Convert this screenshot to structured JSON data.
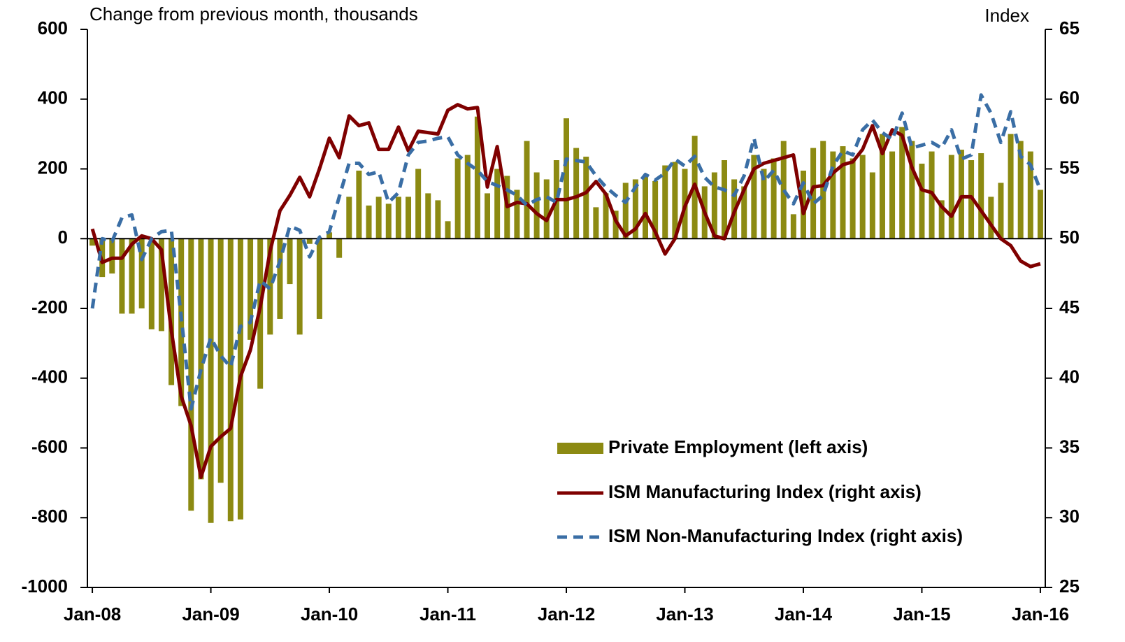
{
  "chart_data": {
    "type": "bar-line",
    "ylabel": "Change from previous month, thousands",
    "y2label": "Index",
    "categories": [
      "Jan-08",
      null,
      null,
      null,
      null,
      null,
      null,
      null,
      null,
      null,
      null,
      null,
      "Jan-09",
      null,
      null,
      null,
      null,
      null,
      null,
      null,
      null,
      null,
      null,
      null,
      "Jan-10",
      null,
      null,
      null,
      null,
      null,
      null,
      null,
      null,
      null,
      null,
      null,
      "Jan-11",
      null,
      null,
      null,
      null,
      null,
      null,
      null,
      null,
      null,
      null,
      null,
      "Jan-12",
      null,
      null,
      null,
      null,
      null,
      null,
      null,
      null,
      null,
      null,
      null,
      "Jan-13",
      null,
      null,
      null,
      null,
      null,
      null,
      null,
      null,
      null,
      null,
      null,
      "Jan-14",
      null,
      null,
      null,
      null,
      null,
      null,
      null,
      null,
      null,
      null,
      null,
      "Jan-15",
      null,
      null,
      null,
      null,
      null,
      null,
      null,
      null,
      null,
      null,
      null,
      "Jan-16"
    ],
    "series": [
      {
        "name": "Private Employment (left axis)",
        "kind": "bar",
        "color": "#8c8a12",
        "values": [
          -20,
          -110,
          -100,
          -215,
          -215,
          -200,
          -260,
          -265,
          -420,
          -480,
          -780,
          -690,
          -815,
          -700,
          -810,
          -805,
          -290,
          -430,
          -275,
          -230,
          -130,
          -275,
          -15,
          -230,
          18,
          -55,
          120,
          195,
          95,
          120,
          100,
          120,
          120,
          200,
          130,
          110,
          50,
          230,
          240,
          350,
          130,
          200,
          180,
          140,
          280,
          190,
          170,
          225,
          345,
          260,
          235,
          90,
          130,
          80,
          160,
          170,
          180,
          165,
          210,
          220,
          200,
          295,
          150,
          190,
          225,
          170,
          150,
          240,
          200,
          230,
          280,
          70,
          195,
          260,
          280,
          250,
          265,
          230,
          240,
          190,
          300,
          250,
          320,
          280,
          215,
          250,
          110,
          240,
          255,
          225,
          245,
          120,
          160,
          300,
          280,
          250,
          140
        ]
      },
      {
        "name": "ISM Manufacturing Index (right axis)",
        "kind": "line",
        "axis": "y2",
        "color": "#7f0000",
        "dash": false,
        "values": [
          50.7,
          48.3,
          48.6,
          48.6,
          49.6,
          50.2,
          50.0,
          49.2,
          43.4,
          38.7,
          36.6,
          32.9,
          35.1,
          35.8,
          36.4,
          40.1,
          42.0,
          45.1,
          49.1,
          52.0,
          53.1,
          54.4,
          53.0,
          55.0,
          57.2,
          55.8,
          58.8,
          58.1,
          58.3,
          56.4,
          56.4,
          58.0,
          56.3,
          57.7,
          57.6,
          57.5,
          59.2,
          59.6,
          59.3,
          59.4,
          53.7,
          56.6,
          52.3,
          52.6,
          52.5,
          51.8,
          51.3,
          52.8,
          52.8,
          53.0,
          53.3,
          54.1,
          53.2,
          51.3,
          50.2,
          50.7,
          51.8,
          50.5,
          48.9,
          50.0,
          52.3,
          53.9,
          51.9,
          50.2,
          50.0,
          51.9,
          53.5,
          55.0,
          55.4,
          55.6,
          55.8,
          56.0,
          51.8,
          53.7,
          53.8,
          54.7,
          55.3,
          55.5,
          56.4,
          58.1,
          56.1,
          57.8,
          57.4,
          55.1,
          53.5,
          53.3,
          52.3,
          51.6,
          53.0,
          53.0,
          52.0,
          51.0,
          50.0,
          49.5,
          48.4,
          48.0,
          48.2
        ]
      },
      {
        "name": "ISM Non-Manufacturing Index (right axis)",
        "kind": "line",
        "axis": "y2",
        "color": "#3a6ea5",
        "dash": true,
        "values": [
          45.0,
          50.0,
          49.8,
          51.5,
          51.7,
          48.5,
          50.0,
          50.5,
          50.6,
          44.4,
          37.8,
          40.6,
          42.9,
          41.6,
          40.8,
          43.7,
          44.0,
          47.0,
          46.4,
          48.4,
          50.9,
          50.6,
          48.7,
          50.1,
          50.5,
          53.0,
          55.4,
          55.4,
          54.6,
          54.8,
          52.6,
          53.3,
          56.0,
          56.9,
          57.0,
          57.2,
          57.3,
          56.0,
          55.4,
          54.9,
          54.1,
          53.8,
          53.5,
          53.1,
          52.4,
          52.8,
          53.0,
          52.6,
          55.7,
          55.6,
          55.5,
          54.5,
          53.7,
          53.1,
          52.6,
          53.7,
          54.6,
          54.2,
          54.7,
          55.7,
          55.2,
          55.9,
          54.4,
          53.7,
          53.5,
          53.1,
          54.5,
          57.2,
          54.1,
          54.9,
          53.5,
          52.5,
          54.0,
          52.5,
          53.1,
          55.2,
          56.3,
          56.0,
          57.8,
          58.5,
          57.6,
          57.1,
          59.0,
          56.5,
          56.7,
          56.9,
          56.5,
          57.8,
          55.7,
          56.0,
          60.3,
          59.0,
          56.9,
          59.1,
          55.9,
          55.3,
          53.5
        ]
      }
    ],
    "ylim": [
      -1000,
      600
    ],
    "yticks": [
      -1000,
      -800,
      -600,
      -400,
      -200,
      0,
      200,
      400,
      600
    ],
    "y2lim": [
      25,
      65
    ],
    "y2ticks": [
      25,
      30,
      35,
      40,
      45,
      50,
      55,
      60,
      65
    ],
    "legend": "lower right",
    "grid": false
  }
}
